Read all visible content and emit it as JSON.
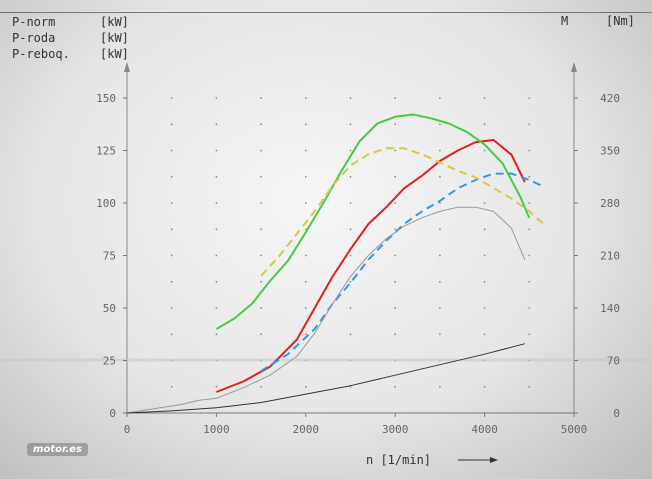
{
  "legend": [
    {
      "name": "P-norm",
      "unit": "[kW]"
    },
    {
      "name": "P-roda",
      "unit": "[kW]"
    },
    {
      "name": "P-reboq.",
      "unit": "[kW]"
    }
  ],
  "right_axis_symbol": "M",
  "right_axis_unit": "[Nm]",
  "watermark": "motor.es",
  "chart_data": {
    "type": "line",
    "xlabel": "n [1/min]",
    "xlim": [
      0,
      5000
    ],
    "x_ticks": [
      0,
      1000,
      2000,
      3000,
      4000,
      5000
    ],
    "ylim_left": [
      0,
      150
    ],
    "y_ticks_left": [
      0,
      25,
      50,
      75,
      100,
      125,
      150
    ],
    "ylim_right": [
      0,
      420
    ],
    "y_ticks_right": [
      0,
      70,
      140,
      210,
      280,
      350,
      420
    ],
    "grid": "dotted",
    "series": [
      {
        "color": "#e02020",
        "style": "solid",
        "axis": "left",
        "x": [
          1000,
          1300,
          1600,
          1900,
          2100,
          2300,
          2500,
          2700,
          2900,
          3100,
          3300,
          3500,
          3700,
          3900,
          4100,
          4300,
          4450
        ],
        "y": [
          10,
          15,
          22,
          35,
          50,
          65,
          78,
          90,
          98,
          107,
          113,
          120,
          125,
          129,
          130,
          123,
          110
        ]
      },
      {
        "color": "#3399dd",
        "style": "dashed",
        "axis": "left",
        "x": [
          1500,
          1800,
          2100,
          2300,
          2500,
          2700,
          2900,
          3100,
          3300,
          3500,
          3700,
          3900,
          4100,
          4300,
          4500,
          4650
        ],
        "y": [
          20,
          28,
          40,
          52,
          62,
          73,
          82,
          90,
          96,
          101,
          107,
          111,
          114,
          114,
          111,
          108
        ]
      },
      {
        "color": "#44cc44",
        "style": "solid",
        "axis": "right",
        "x": [
          1000,
          1200,
          1400,
          1600,
          1800,
          2000,
          2200,
          2400,
          2600,
          2800,
          3000,
          3200,
          3400,
          3600,
          3800,
          4000,
          4200,
          4400,
          4500
        ],
        "y": [
          112,
          126,
          146,
          176,
          203,
          241,
          281,
          323,
          362,
          386,
          395,
          398,
          393,
          386,
          375,
          358,
          333,
          288,
          260
        ]
      },
      {
        "color": "#d8c848",
        "style": "dashed",
        "axis": "right",
        "x": [
          1500,
          1700,
          1900,
          2100,
          2300,
          2500,
          2700,
          2900,
          3100,
          3300,
          3500,
          3700,
          3900,
          4100,
          4300,
          4500,
          4650
        ],
        "y": [
          183,
          209,
          239,
          269,
          303,
          330,
          345,
          353,
          353,
          345,
          334,
          323,
          314,
          300,
          286,
          269,
          253
        ]
      },
      {
        "color": "#999999",
        "style": "solid",
        "axis": "left",
        "x": [
          0,
          300,
          600,
          800,
          1000,
          1300,
          1600,
          1900,
          2100,
          2300,
          2500,
          2700,
          2900,
          3100,
          3300,
          3500,
          3700,
          3900,
          4100,
          4300,
          4450
        ],
        "y": [
          0,
          2,
          4,
          6,
          7,
          12,
          18,
          27,
          38,
          52,
          65,
          75,
          83,
          89,
          93,
          96,
          98,
          98,
          96,
          88,
          73
        ]
      },
      {
        "color": "#333333",
        "style": "solid",
        "axis": "left",
        "x": [
          0,
          500,
          1000,
          1500,
          2000,
          2500,
          3000,
          3500,
          4000,
          4450
        ],
        "y": [
          0,
          1,
          2.5,
          5,
          9,
          13,
          18,
          23,
          28,
          33
        ]
      }
    ]
  }
}
